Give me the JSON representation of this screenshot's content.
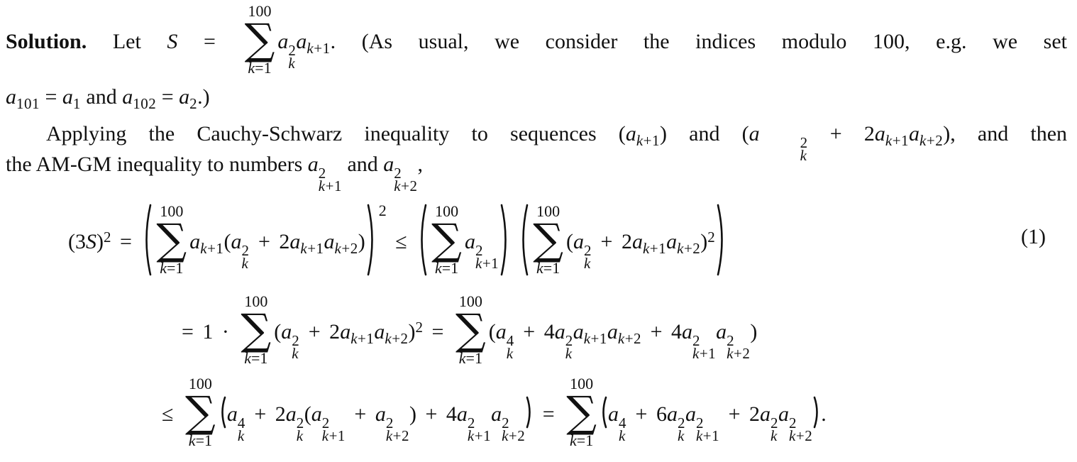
{
  "math": {
    "sigma": "∑",
    "sum_upper": "100",
    "sum_lower": "k=1"
  },
  "paragraph_intro": {
    "line1": [
      [
        "b",
        "Solution."
      ],
      [
        "r",
        "  Let "
      ],
      [
        "i",
        "S"
      ],
      [
        "r",
        " = "
      ],
      [
        "sum"
      ],
      [
        "i",
        "a"
      ],
      [
        "ss",
        "2",
        "k"
      ],
      [
        "i",
        "a"
      ],
      [
        "sub",
        "k+1"
      ],
      [
        "r",
        ". (As usual, we consider the indices modulo 100, e.g. we set"
      ]
    ],
    "line2": [
      [
        "i",
        "a"
      ],
      [
        "sub",
        "101"
      ],
      [
        "r",
        " = "
      ],
      [
        "i",
        "a"
      ],
      [
        "sub",
        "1"
      ],
      [
        "r",
        " and "
      ],
      [
        "i",
        "a"
      ],
      [
        "sub",
        "102"
      ],
      [
        "r",
        " = "
      ],
      [
        "i",
        "a"
      ],
      [
        "sub",
        "2"
      ],
      [
        "r",
        ".)"
      ]
    ]
  },
  "paragraph_apply": {
    "line1": [
      [
        "r",
        "Applying the Cauchy-Schwarz inequality to sequences ("
      ],
      [
        "i",
        "a"
      ],
      [
        "sub",
        "k+1"
      ],
      [
        "r",
        ") and ("
      ],
      [
        "i",
        "a"
      ],
      [
        "ss",
        "2",
        "k"
      ],
      [
        "r",
        " + 2"
      ],
      [
        "i",
        "a"
      ],
      [
        "sub",
        "k+1"
      ],
      [
        "i",
        "a"
      ],
      [
        "sub",
        "k+2"
      ],
      [
        "r",
        "), and then"
      ]
    ],
    "line2": [
      [
        "r",
        "the AM-GM inequality to numbers "
      ],
      [
        "i",
        "a"
      ],
      [
        "ss",
        "2",
        "k+1"
      ],
      [
        "r",
        " and "
      ],
      [
        "i",
        "a"
      ],
      [
        "ss",
        "2",
        "k+2"
      ],
      [
        "r",
        ","
      ]
    ]
  },
  "equation": {
    "tag": "(1)",
    "line1": [
      [
        "r",
        "(3"
      ],
      [
        "i",
        "S"
      ],
      [
        "r",
        ")"
      ],
      [
        "sup",
        "2"
      ],
      [
        "r",
        " = "
      ],
      [
        "bigp",
        "open",
        3
      ],
      [
        "sum"
      ],
      [
        "i",
        "a"
      ],
      [
        "sub",
        "k+1"
      ],
      [
        "r",
        "("
      ],
      [
        "i",
        "a"
      ],
      [
        "ss",
        "2",
        "k"
      ],
      [
        "r",
        " + 2"
      ],
      [
        "i",
        "a"
      ],
      [
        "sub",
        "k+1"
      ],
      [
        "i",
        "a"
      ],
      [
        "sub",
        "k+2"
      ],
      [
        "r",
        ")"
      ],
      [
        "bigp",
        "close",
        3
      ],
      [
        "supT",
        "2"
      ],
      [
        "r",
        " ≤ "
      ],
      [
        "bigp",
        "open",
        3
      ],
      [
        "sum"
      ],
      [
        "i",
        "a"
      ],
      [
        "ss",
        "2",
        "k+1"
      ],
      [
        "bigp",
        "close",
        3
      ],
      [
        "sp",
        8
      ],
      [
        "bigp",
        "open",
        3
      ],
      [
        "sum"
      ],
      [
        "r",
        "("
      ],
      [
        "i",
        "a"
      ],
      [
        "ss",
        "2",
        "k"
      ],
      [
        "r",
        " + 2"
      ],
      [
        "i",
        "a"
      ],
      [
        "sub",
        "k+1"
      ],
      [
        "i",
        "a"
      ],
      [
        "sub",
        "k+2"
      ],
      [
        "r",
        ")"
      ],
      [
        "sup",
        "2"
      ],
      [
        "bigp",
        "close",
        3
      ]
    ],
    "line2": [
      [
        "r",
        "= 1 · "
      ],
      [
        "sum"
      ],
      [
        "r",
        "("
      ],
      [
        "i",
        "a"
      ],
      [
        "ss",
        "2",
        "k"
      ],
      [
        "r",
        " + 2"
      ],
      [
        "i",
        "a"
      ],
      [
        "sub",
        "k+1"
      ],
      [
        "i",
        "a"
      ],
      [
        "sub",
        "k+2"
      ],
      [
        "r",
        ")"
      ],
      [
        "sup",
        "2"
      ],
      [
        "r",
        " = "
      ],
      [
        "sum"
      ],
      [
        "r",
        "("
      ],
      [
        "i",
        "a"
      ],
      [
        "ss",
        "4",
        "k"
      ],
      [
        "r",
        " + 4"
      ],
      [
        "i",
        "a"
      ],
      [
        "ss",
        "2",
        "k"
      ],
      [
        "i",
        "a"
      ],
      [
        "sub",
        "k+1"
      ],
      [
        "i",
        "a"
      ],
      [
        "sub",
        "k+2"
      ],
      [
        "r",
        " + 4"
      ],
      [
        "i",
        "a"
      ],
      [
        "ss",
        "2",
        "k+1"
      ],
      [
        "i",
        "a"
      ],
      [
        "ss",
        "2",
        "k+2"
      ],
      [
        "r",
        ")"
      ]
    ],
    "line3": [
      [
        "r",
        "≤ "
      ],
      [
        "sum"
      ],
      [
        "bigp",
        "open",
        1
      ],
      [
        "i",
        "a"
      ],
      [
        "ss",
        "4",
        "k"
      ],
      [
        "r",
        " + 2"
      ],
      [
        "i",
        "a"
      ],
      [
        "ss",
        "2",
        "k"
      ],
      [
        "r",
        "("
      ],
      [
        "i",
        "a"
      ],
      [
        "ss",
        "2",
        "k+1"
      ],
      [
        "r",
        " + "
      ],
      [
        "i",
        "a"
      ],
      [
        "ss",
        "2",
        "k+2"
      ],
      [
        "r",
        ") + 4"
      ],
      [
        "i",
        "a"
      ],
      [
        "ss",
        "2",
        "k+1"
      ],
      [
        "i",
        "a"
      ],
      [
        "ss",
        "2",
        "k+2"
      ],
      [
        "bigp",
        "close",
        1
      ],
      [
        "r",
        " = "
      ],
      [
        "sum"
      ],
      [
        "bigp",
        "open",
        1
      ],
      [
        "i",
        "a"
      ],
      [
        "ss",
        "4",
        "k"
      ],
      [
        "r",
        " + 6"
      ],
      [
        "i",
        "a"
      ],
      [
        "ss",
        "2",
        "k"
      ],
      [
        "i",
        "a"
      ],
      [
        "ss",
        "2",
        "k+1"
      ],
      [
        "r",
        " + 2"
      ],
      [
        "i",
        "a"
      ],
      [
        "ss",
        "2",
        "k"
      ],
      [
        "i",
        "a"
      ],
      [
        "ss",
        "2",
        "k+2"
      ],
      [
        "bigp",
        "close",
        1
      ],
      [
        "r",
        "."
      ]
    ]
  }
}
